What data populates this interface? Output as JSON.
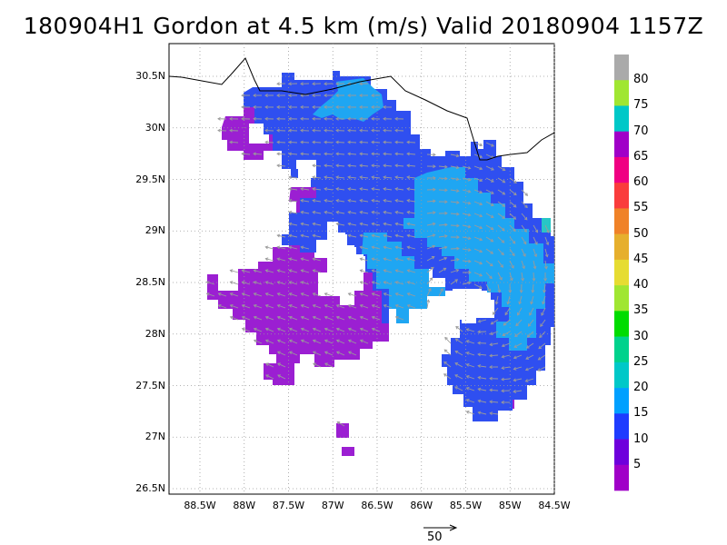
{
  "title": "180904H1 Gordon at 4.5 km (m/s) Valid 20180904 1157Z",
  "map": {
    "lat_ticks": [
      "30.5N",
      "30N",
      "29.5N",
      "29N",
      "28.5N",
      "28N",
      "27.5N",
      "27N",
      "26.5N"
    ],
    "lon_ticks": [
      "88.5W",
      "88W",
      "87.5W",
      "87W",
      "86.5W",
      "86W",
      "85.5W",
      "85W",
      "84.5W"
    ],
    "lat_range": [
      26.45,
      30.75
    ],
    "lon_range": [
      -88.85,
      -84.5
    ]
  },
  "colorbar": {
    "labels": [
      "5",
      "10",
      "15",
      "20",
      "25",
      "30",
      "35",
      "40",
      "45",
      "50",
      "55",
      "60",
      "65",
      "70",
      "75",
      "80"
    ],
    "colors": [
      "#a000c8",
      "#6e00dc",
      "#1e3cff",
      "#00a0ff",
      "#00c8c8",
      "#00d28c",
      "#00dc00",
      "#a0e632",
      "#e6dc32",
      "#e6af2d",
      "#f08228",
      "#fa3c3c",
      "#f00082",
      "#a000c8",
      "#00c8c8",
      "#a0e632",
      "#aaaaaa"
    ]
  },
  "reference_vector": {
    "label": "50"
  },
  "colors": {
    "purple": "#9b1fd2",
    "violet": "#6e1ce0",
    "blue": "#2f4ff0",
    "lightblue": "#1fa6f2",
    "teal": "#27c6c6",
    "coast": "#000000",
    "vector": "#9a9a9a"
  }
}
